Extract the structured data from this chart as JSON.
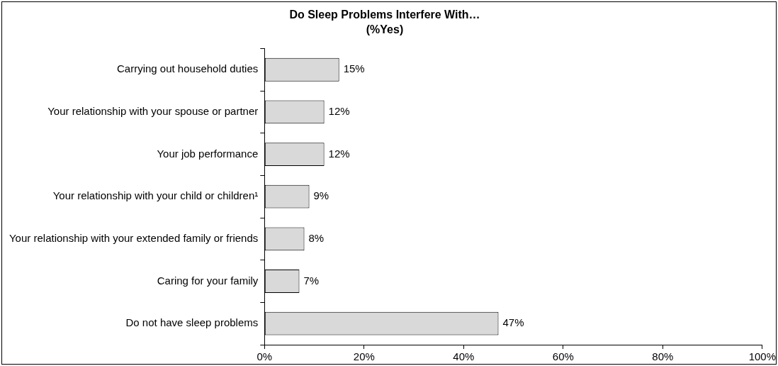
{
  "chart_data": {
    "type": "bar",
    "orientation": "horizontal",
    "title": "Do Sleep Problems Interfere With…",
    "subtitle": "(%Yes)",
    "categories": [
      "Carrying out household duties",
      "Your relationship with your spouse or partner",
      "Your job performance",
      "Your relationship with your child or children¹",
      "Your relationship with your extended family or friends",
      "Caring for your family",
      "Do not have sleep problems"
    ],
    "values": [
      15,
      12,
      12,
      9,
      8,
      7,
      47
    ],
    "value_labels": [
      "15%",
      "12%",
      "12%",
      "9%",
      "8%",
      "7%",
      "47%"
    ],
    "color": "#d9d9d9",
    "xlim": [
      0,
      100
    ],
    "xticks": [
      {
        "value": 0,
        "label": "0%"
      },
      {
        "value": 20,
        "label": "20%"
      },
      {
        "value": 40,
        "label": "40%"
      },
      {
        "value": 60,
        "label": "60%"
      },
      {
        "value": 80,
        "label": "80%"
      },
      {
        "value": 100,
        "label": "100%"
      }
    ],
    "grid": false,
    "legend": false
  }
}
